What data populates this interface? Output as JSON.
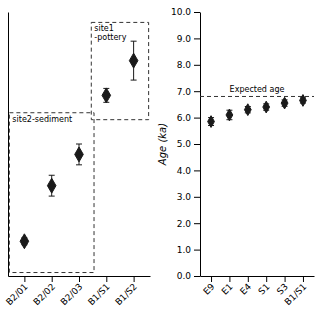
{
  "chart_data": [
    {
      "type": "errorbar",
      "categories": [
        "B2/01",
        "B2/02",
        "B2/03",
        "B1/S1",
        "B1/S2"
      ],
      "values": [
        4.7,
        5.5,
        5.95,
        6.8,
        7.3
      ],
      "yerr": [
        0.05,
        0.15,
        0.15,
        0.1,
        0.28
      ],
      "ylim": [
        4.2,
        8.0
      ],
      "tick_labels": "x",
      "color": "#1a1a1a",
      "marker": "diamond",
      "annotations": [
        {
          "text": "site2-sediment",
          "categories": [
            "B2/01",
            "B2/02",
            "B2/03"
          ],
          "y_range": [
            4.25,
            6.55
          ]
        },
        {
          "text": "site1\n-pottery",
          "categories": [
            "B1/S1",
            "B1/S2"
          ],
          "y_range": [
            6.45,
            7.85
          ]
        }
      ]
    },
    {
      "type": "errorbar",
      "categories": [
        "E9",
        "E1",
        "E4",
        "S1",
        "S3",
        "B1/S1"
      ],
      "values": [
        5.85,
        6.1,
        6.3,
        6.4,
        6.55,
        6.65
      ],
      "yerr": [
        0.15,
        0.18,
        0.12,
        0.12,
        0.12,
        0.1
      ],
      "ylim": [
        0.0,
        10.0
      ],
      "yticks": [
        {
          "value": 0.0,
          "label": "0.0"
        },
        {
          "value": 1.0,
          "label": "1.0"
        },
        {
          "value": 2.0,
          "label": "2.0"
        },
        {
          "value": 3.0,
          "label": "3.0"
        },
        {
          "value": 4.0,
          "label": "4.0"
        },
        {
          "value": 5.0,
          "label": "5.0"
        },
        {
          "value": 6.0,
          "label": "6.0"
        },
        {
          "value": 7.0,
          "label": "7.0"
        },
        {
          "value": 8.0,
          "label": "8.0"
        },
        {
          "value": 9.0,
          "label": "9.0"
        },
        {
          "value": 10.0,
          "label": "10.0"
        }
      ],
      "y_label": "Age (ka)",
      "color": "#1a1a1a",
      "marker": "diamond",
      "annotations": [
        {
          "text": "Expected age",
          "y": 6.8
        }
      ]
    }
  ]
}
